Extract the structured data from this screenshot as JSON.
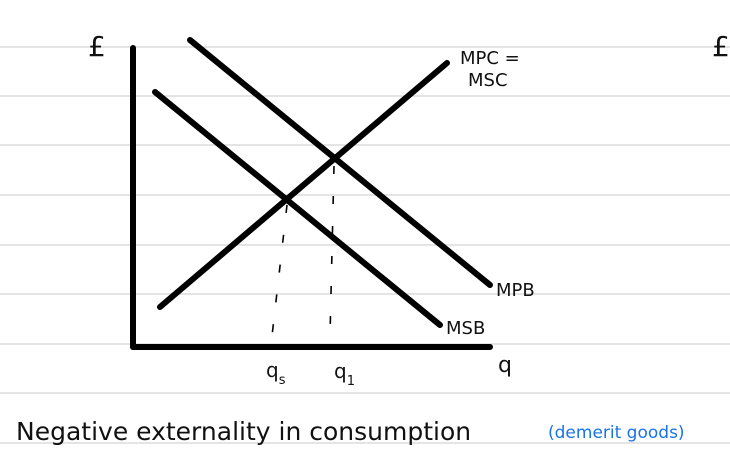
{
  "diagram": {
    "y_axis_label": "£",
    "x_axis_label": "q",
    "curves": {
      "mpc_msc": [
        "MPC =",
        "MSC"
      ],
      "mpb": "MPB",
      "msb": "MSB"
    },
    "quantities": {
      "social": {
        "base": "q",
        "sub": "s"
      },
      "private": {
        "base": "q",
        "sub": "1"
      }
    },
    "next_label": "£"
  },
  "caption": {
    "text": "Negative externality in consumption",
    "note": "(demerit goods)"
  }
}
